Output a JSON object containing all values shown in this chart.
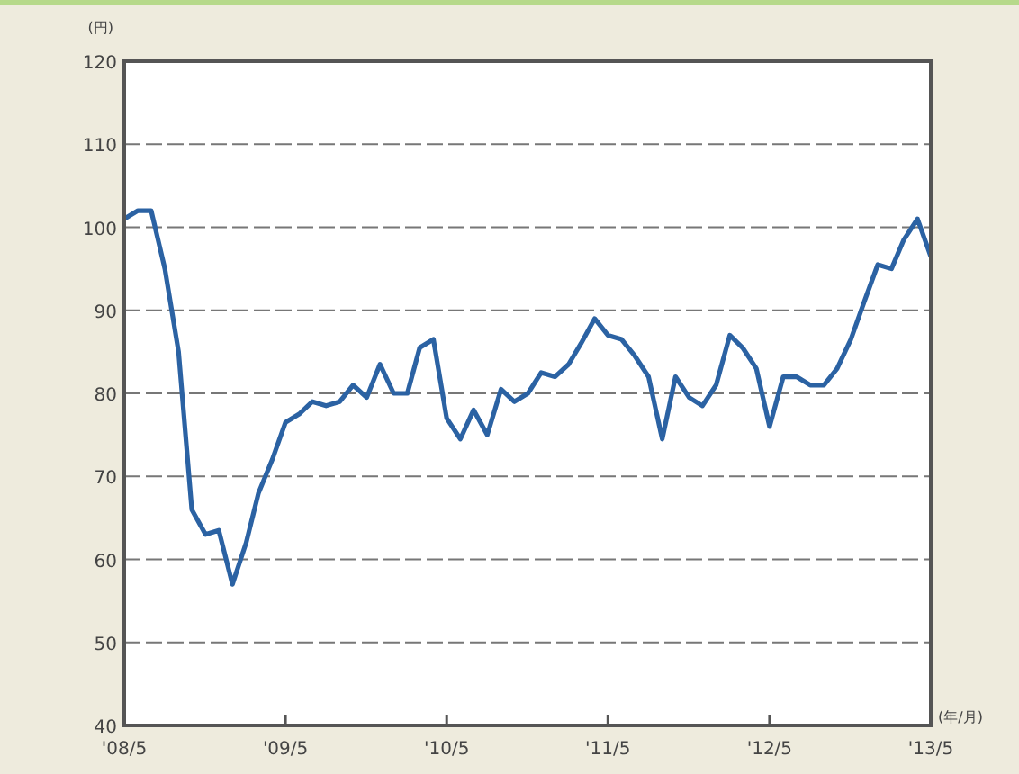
{
  "chart_data": {
    "type": "line",
    "xlabel": "(年/月)",
    "ylabel": "(円)",
    "x": [
      "2008-05",
      "2008-06",
      "2008-07",
      "2008-08",
      "2008-09",
      "2008-10",
      "2008-11",
      "2008-12",
      "2009-01",
      "2009-02",
      "2009-03",
      "2009-04",
      "2009-05",
      "2009-06",
      "2009-07",
      "2009-08",
      "2009-09",
      "2009-10",
      "2009-11",
      "2009-12",
      "2010-01",
      "2010-02",
      "2010-03",
      "2010-04",
      "2010-05",
      "2010-06",
      "2010-07",
      "2010-08",
      "2010-09",
      "2010-10",
      "2010-11",
      "2010-12",
      "2011-01",
      "2011-02",
      "2011-03",
      "2011-04",
      "2011-05",
      "2011-06",
      "2011-07",
      "2011-08",
      "2011-09",
      "2011-10",
      "2011-11",
      "2011-12",
      "2012-01",
      "2012-02",
      "2012-03",
      "2012-04",
      "2012-05",
      "2012-06",
      "2012-07",
      "2012-08",
      "2012-09",
      "2012-10",
      "2012-11",
      "2012-12",
      "2013-01",
      "2013-02",
      "2013-03",
      "2013-04",
      "2013-05"
    ],
    "series": [
      {
        "color": "#2b62a3",
        "values": [
          101,
          102,
          102,
          95,
          85,
          66,
          63,
          63.5,
          57,
          62,
          68,
          72,
          76.5,
          77.5,
          79,
          78.5,
          79,
          81,
          79.5,
          83.5,
          80,
          80,
          85.5,
          86.5,
          77,
          74.5,
          78,
          75,
          80.5,
          79,
          80,
          82.5,
          82,
          83.5,
          86,
          89,
          87,
          86.5,
          84.5,
          82,
          74.5,
          82,
          79.5,
          78.5,
          81,
          87,
          85.5,
          83,
          76,
          82,
          82,
          81,
          81,
          83,
          86.5,
          91,
          95.5,
          95,
          98.5,
          101,
          96.5
        ]
      }
    ],
    "xlim": [
      "2008-05",
      "2013-05"
    ],
    "xticks": [
      {
        "value": "2008-05",
        "label": "'08/5"
      },
      {
        "value": "2009-05",
        "label": "'09/5"
      },
      {
        "value": "2010-05",
        "label": "'10/5"
      },
      {
        "value": "2011-05",
        "label": "'11/5"
      },
      {
        "value": "2012-05",
        "label": "'12/5"
      },
      {
        "value": "2013-05",
        "label": "'13/5"
      }
    ],
    "ylim": [
      40,
      120
    ],
    "yticks": [
      40,
      50,
      60,
      70,
      80,
      90,
      100,
      110,
      120
    ],
    "grid": "y",
    "marker": "none",
    "line_style": "solid"
  }
}
